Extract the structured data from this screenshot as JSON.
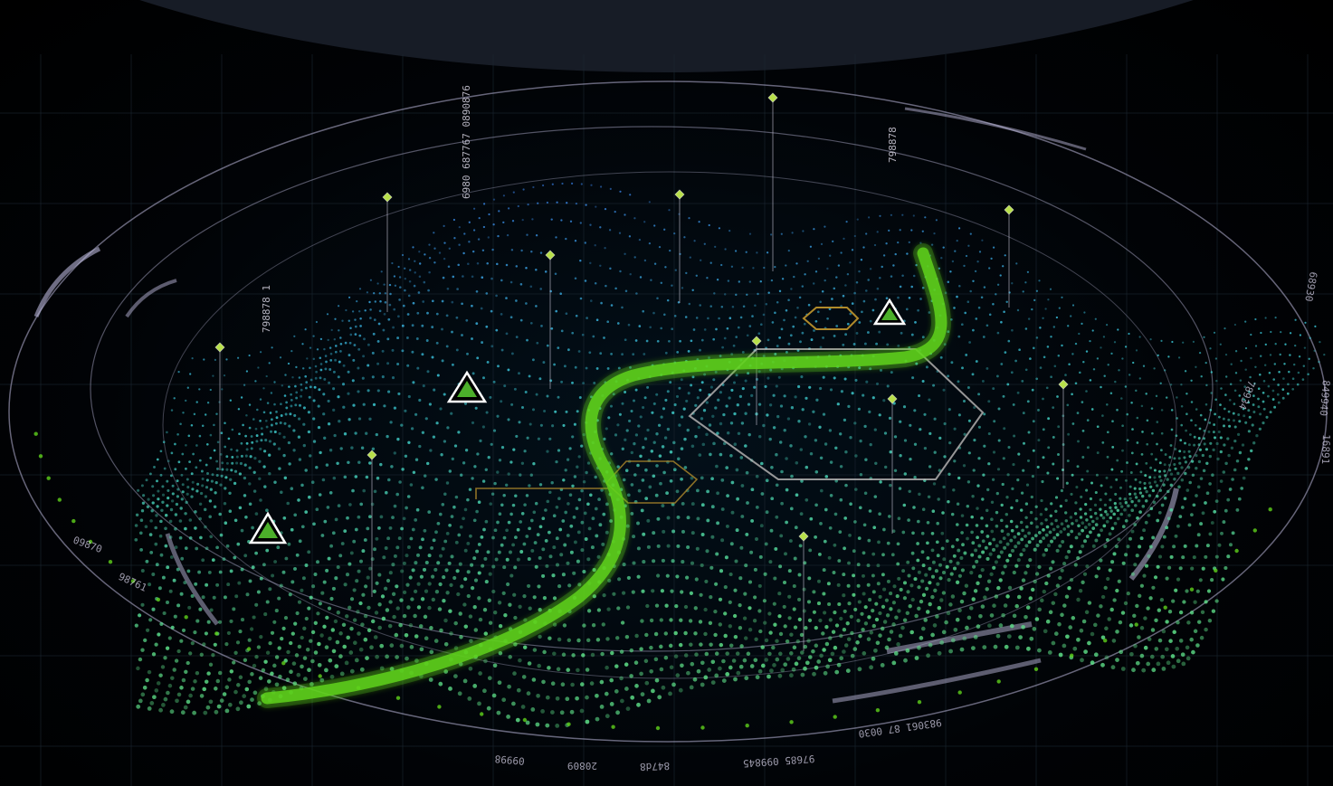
{
  "colors": {
    "background": "#000000",
    "top_band": "#171c26",
    "ring": "#b9b6d8",
    "grid": "#1a2630",
    "path_green": "#5fd21c",
    "marker_fill": "#4caf2a",
    "marker_outline": "#ffffff",
    "hex_gold": "#b08a2a",
    "hex_white": "#c9c6c4",
    "point_blue": "#3a6ff0",
    "point_cyan": "#39c8d8",
    "point_green": "#5fe38a"
  },
  "markers": [
    {
      "id": "triangle-left",
      "label": "waypoint"
    },
    {
      "id": "triangle-mid",
      "label": "waypoint"
    },
    {
      "id": "triangle-right",
      "label": "waypoint"
    }
  ],
  "ring_labels": {
    "bottom": [
      "983061 87 0030",
      "97685 099845",
      "847d8",
      "20809",
      "09998"
    ],
    "right": [
      "68930",
      "849940",
      "78934",
      "16891"
    ],
    "left": [
      "09870",
      "98761"
    ]
  },
  "vertical_labels": [
    "6980 687767 0890876",
    "798878 1",
    "798878"
  ]
}
